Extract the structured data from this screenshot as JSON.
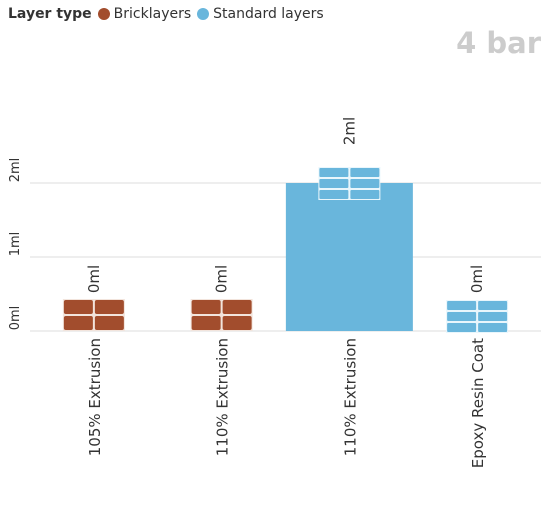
{
  "legend": {
    "title": "Layer type",
    "items": [
      {
        "label": "Bricklayers",
        "color": "#a24d2d"
      },
      {
        "label": "Standard layers",
        "color": "#69b6dc"
      }
    ]
  },
  "badge": "4 bar",
  "chart_data": {
    "type": "bar",
    "categories": [
      "105% Extrusion",
      "110% Extrusion",
      "110% Extrusion",
      "Epoxy Resin Coat"
    ],
    "series_for_category": [
      "Bricklayers",
      "Bricklayers",
      "Standard layers",
      "Standard layers"
    ],
    "values": [
      0,
      0,
      2,
      0
    ],
    "data_labels": [
      "0ml",
      "0ml",
      "2ml",
      "0ml"
    ],
    "ytick_labels": [
      "0ml",
      "1ml",
      "2ml"
    ],
    "ytick_values": [
      0,
      1,
      2
    ],
    "ylim": [
      0,
      2
    ],
    "grid": true,
    "legend_position": "top-left",
    "colors": {
      "Bricklayers": "#a24d2d",
      "Standard layers": "#69b6dc",
      "grid": "#dddddd",
      "brick_mortar": "#f2e4dc",
      "tile_mortar": "#e9f6fc"
    }
  }
}
